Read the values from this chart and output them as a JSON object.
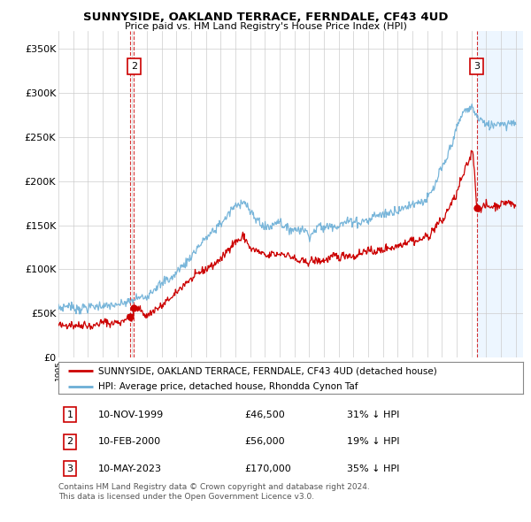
{
  "title": "SUNNYSIDE, OAKLAND TERRACE, FERNDALE, CF43 4UD",
  "subtitle": "Price paid vs. HM Land Registry's House Price Index (HPI)",
  "ylabel_ticks": [
    "£0",
    "£50K",
    "£100K",
    "£150K",
    "£200K",
    "£250K",
    "£300K",
    "£350K"
  ],
  "ytick_values": [
    0,
    50000,
    100000,
    150000,
    200000,
    250000,
    300000,
    350000
  ],
  "ylim": [
    0,
    370000
  ],
  "xlim_start": 1995.0,
  "xlim_end": 2026.5,
  "hpi_color": "#6baed6",
  "price_color": "#cc0000",
  "sale_points": [
    {
      "year": 1999.87,
      "price": 46500,
      "label": "1"
    },
    {
      "year": 2000.12,
      "price": 56000,
      "label": "2"
    },
    {
      "year": 2023.37,
      "price": 170000,
      "label": "3"
    }
  ],
  "legend_entries": [
    "SUNNYSIDE, OAKLAND TERRACE, FERNDALE, CF43 4UD (detached house)",
    "HPI: Average price, detached house, Rhondda Cynon Taf"
  ],
  "table_rows": [
    {
      "num": "1",
      "date": "10-NOV-1999",
      "price": "£46,500",
      "pct": "31% ↓ HPI"
    },
    {
      "num": "2",
      "date": "10-FEB-2000",
      "price": "£56,000",
      "pct": "19% ↓ HPI"
    },
    {
      "num": "3",
      "date": "10-MAY-2023",
      "price": "£170,000",
      "pct": "35% ↓ HPI"
    }
  ],
  "footer": "Contains HM Land Registry data © Crown copyright and database right 2024.\nThis data is licensed under the Open Government Licence v3.0.",
  "bg_color": "#ffffff",
  "grid_color": "#cccccc",
  "shade_color": "#ddeeff"
}
